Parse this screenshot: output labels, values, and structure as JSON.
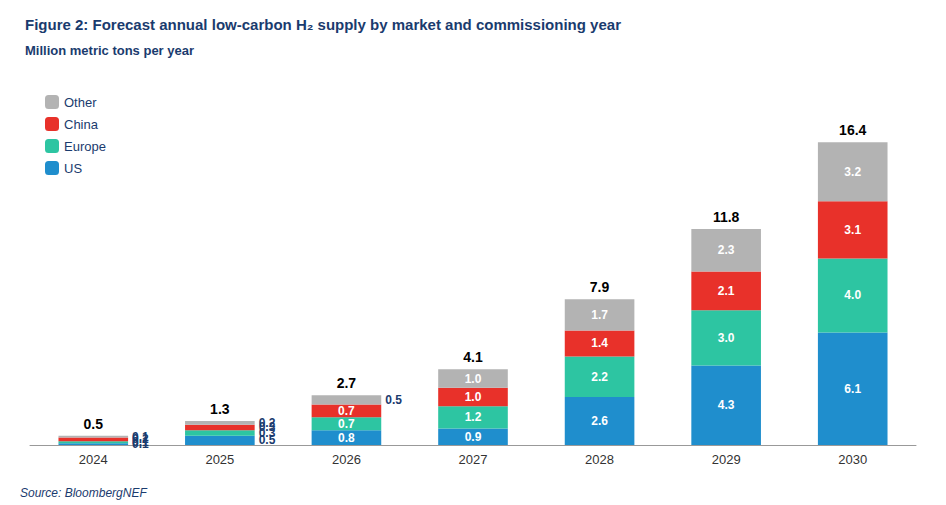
{
  "chart_data": {
    "type": "bar",
    "stacked": true,
    "title": "Figure 2: Forecast annual low-carbon H₂ supply by market and commissioning year",
    "ylabel": "Million metric tons per year",
    "annotations": [
      "Source: BloombergNEF"
    ],
    "categories": [
      "2024",
      "2025",
      "2026",
      "2027",
      "2028",
      "2029",
      "2030"
    ],
    "series": [
      {
        "name": "US",
        "color": "#1F8ECD",
        "values": [
          0.1,
          0.5,
          0.8,
          0.9,
          2.6,
          4.3,
          6.1
        ],
        "value_labels": [
          "0.1",
          "0.5",
          "0.8",
          "0.9",
          "2.6",
          "4.3",
          "6.1"
        ]
      },
      {
        "name": "Europe",
        "color": "#2DC5A2",
        "values": [
          0.1,
          0.3,
          0.7,
          1.2,
          2.2,
          3.0,
          4.0
        ],
        "value_labels": [
          "0.1",
          "0.3",
          "0.7",
          "1.2",
          "2.2",
          "3.0",
          "4.0"
        ]
      },
      {
        "name": "China",
        "color": "#E8312A",
        "values": [
          0.2,
          0.3,
          0.7,
          1.0,
          1.4,
          2.1,
          3.1
        ],
        "value_labels": [
          "0.2",
          "0.3",
          "0.7",
          "1.0",
          "1.4",
          "2.1",
          "3.1"
        ]
      },
      {
        "name": "Other",
        "color": "#B3B3B3",
        "values": [
          0.1,
          0.2,
          0.5,
          1.0,
          1.7,
          2.3,
          3.2
        ],
        "value_labels": [
          "0.1",
          "0.2",
          "0.5",
          "1.0",
          "1.7",
          "2.3",
          "3.2"
        ]
      }
    ],
    "totals": [
      0.5,
      1.3,
      2.7,
      4.1,
      7.9,
      11.8,
      16.4
    ],
    "ylim": [
      0,
      19.5
    ],
    "grid": false,
    "legend": "upper left",
    "data_labels": true,
    "tick_labels": "x"
  }
}
